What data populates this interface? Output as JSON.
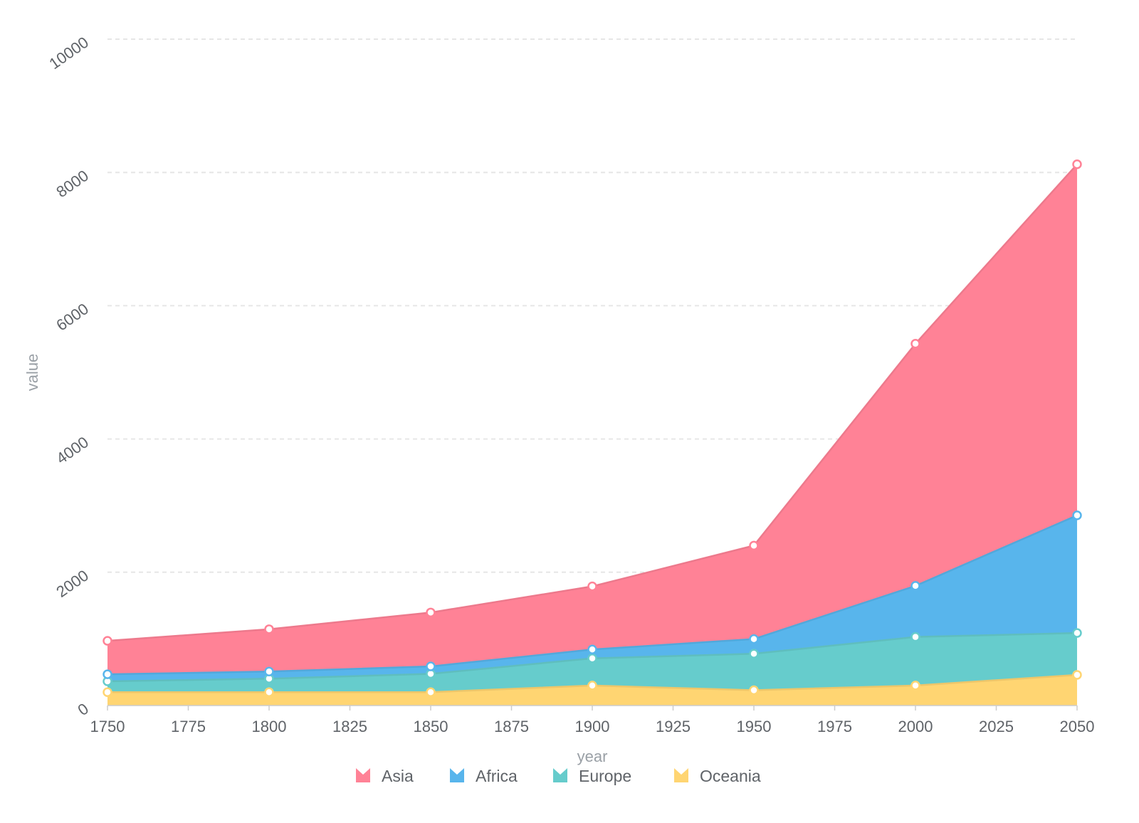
{
  "chart_data": {
    "type": "area",
    "stacked": true,
    "xlabel": "year",
    "ylabel": "value",
    "x": [
      "1750",
      "1800",
      "1850",
      "1900",
      "1950",
      "2000",
      "2050"
    ],
    "x_ticks": [
      "1750",
      "1775",
      "1800",
      "1825",
      "1850",
      "1875",
      "1900",
      "1925",
      "1950",
      "1975",
      "2000",
      "2025",
      "2050"
    ],
    "y_ticks": [
      "0",
      "2000",
      "4000",
      "6000",
      "8000",
      "10000"
    ],
    "xlim": [
      1750,
      2050
    ],
    "ylim": [
      0,
      10000
    ],
    "grid": true,
    "legend_position": "bottom",
    "series": [
      {
        "name": "Oceania",
        "color": "#ffd572",
        "values": [
          200,
          200,
          200,
          300,
          230,
          300,
          460
        ]
      },
      {
        "name": "Europe",
        "color": "#66cccc",
        "values": [
          163,
          203,
          276,
          408,
          547,
          729,
          628
        ]
      },
      {
        "name": "Africa",
        "color": "#58b5ec",
        "values": [
          106,
          107,
          111,
          133,
          221,
          767,
          1766
        ]
      },
      {
        "name": "Asia",
        "color": "#ff8296",
        "values": [
          502,
          635,
          809,
          947,
          1402,
          3634,
          5268
        ]
      }
    ],
    "legend_order": [
      "Asia",
      "Africa",
      "Europe",
      "Oceania"
    ]
  }
}
